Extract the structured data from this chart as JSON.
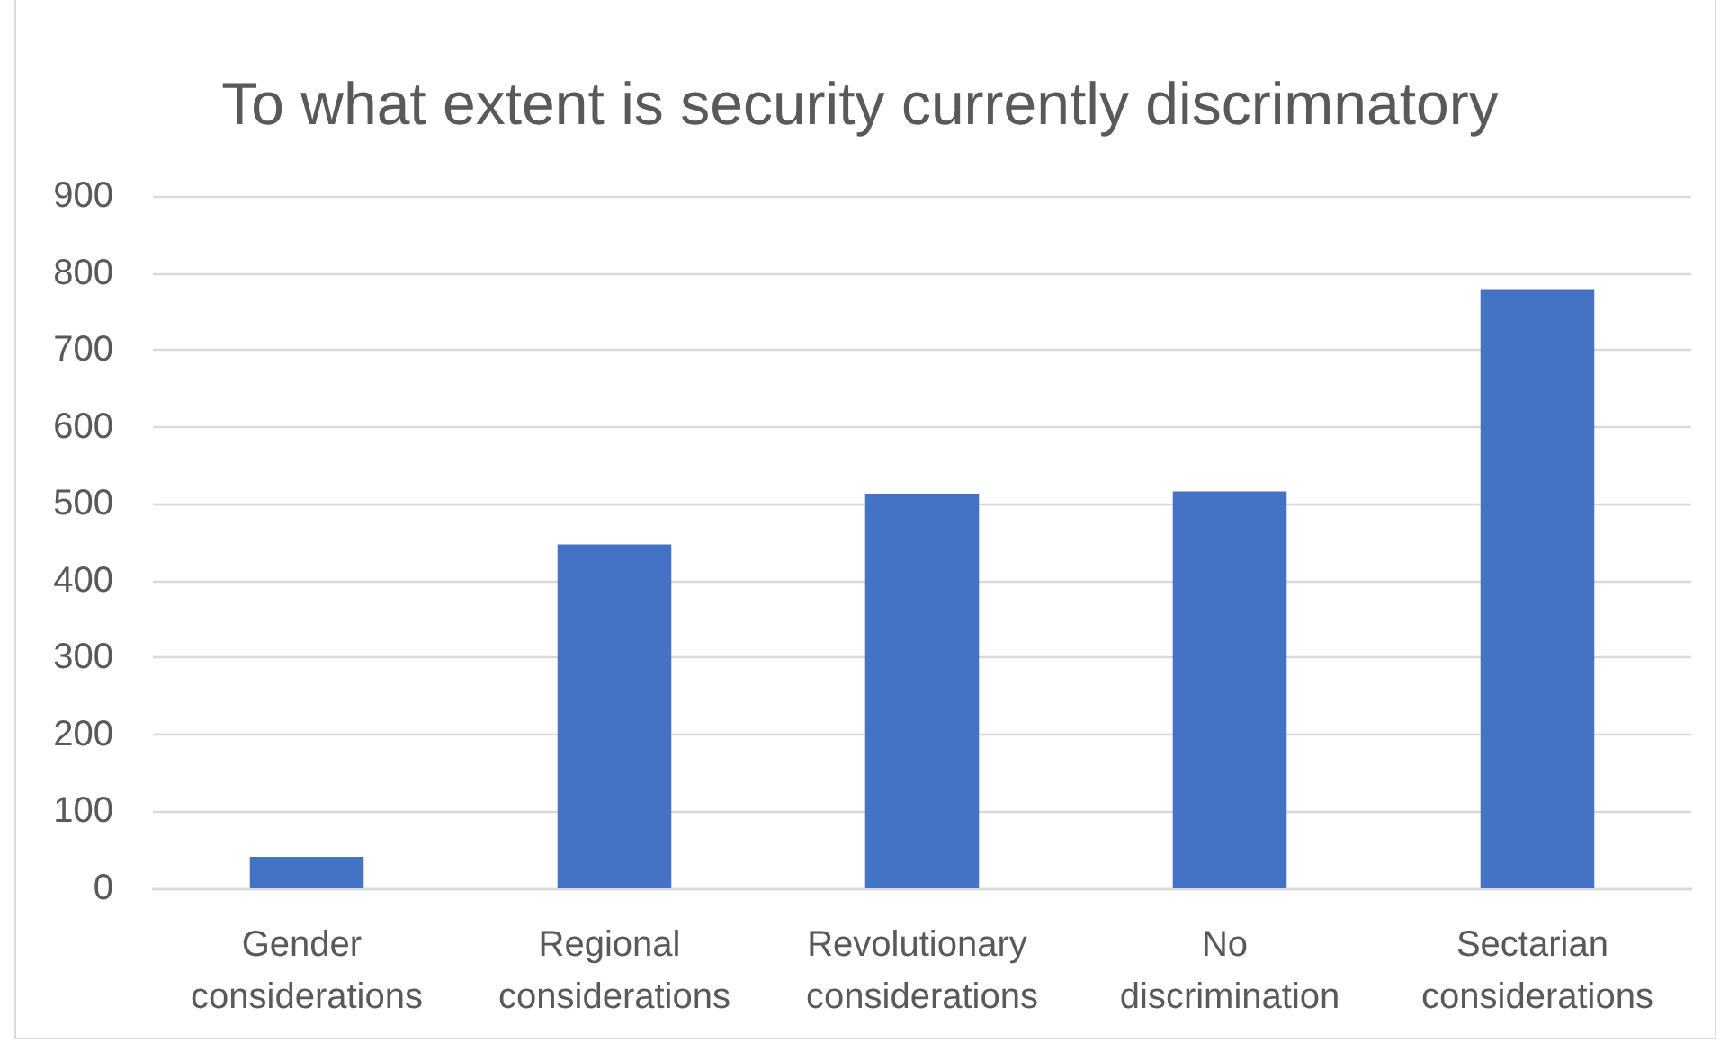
{
  "chart_data": {
    "type": "bar",
    "title": "To what extent is security currently discrimnatory",
    "categories": [
      "Gender considerations",
      "Regional considerations",
      "Revolutionary considerations",
      "No discrimination",
      "Sectarian considerations"
    ],
    "values": [
      41,
      447,
      513,
      516,
      779
    ],
    "color": "#4472c4",
    "ylim": [
      0,
      900
    ],
    "yticks": [
      0,
      100,
      200,
      300,
      400,
      500,
      600,
      700,
      800,
      900
    ],
    "grid": "y"
  }
}
